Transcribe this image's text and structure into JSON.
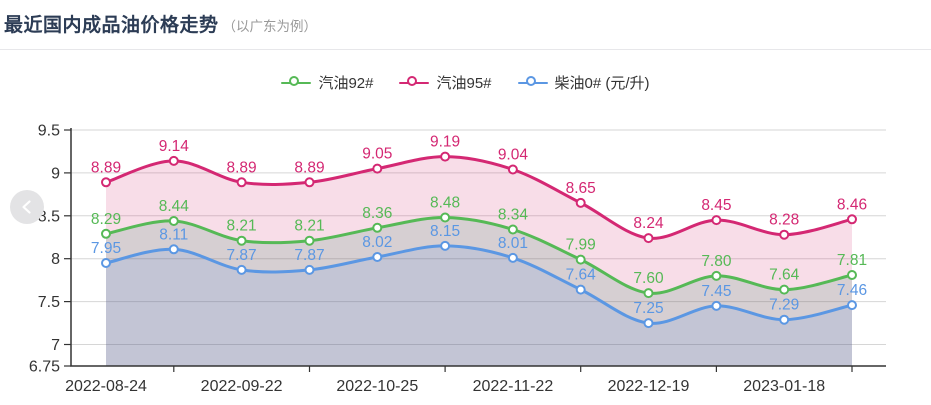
{
  "header": {
    "title": "最近国内成品油价格走势",
    "subtitle": "（以广东为例）"
  },
  "carousel": {
    "prev_icon": "chevron-left"
  },
  "chart_data": {
    "type": "line",
    "title": "最近国内成品油价格走势（以广东为例）",
    "unit": "元/升",
    "smooth": true,
    "grid": true,
    "legend_position": "top",
    "x_tick_labels": [
      "2022-08-24",
      "2022-09-22",
      "2022-10-25",
      "2022-11-22",
      "2022-12-19",
      "2023-01-18"
    ],
    "y_ticks": [
      6.75,
      7,
      7.5,
      8,
      8.5,
      9,
      9.5
    ],
    "ylim": [
      6.75,
      9.5
    ],
    "n_points": 12,
    "series": [
      {
        "name": "汽油92#",
        "color": "#56b956",
        "values": [
          8.29,
          8.44,
          8.21,
          8.21,
          8.36,
          8.48,
          8.34,
          7.99,
          7.6,
          7.8,
          7.64,
          7.81
        ]
      },
      {
        "name": "汽油95#",
        "color": "#d42873",
        "values": [
          8.89,
          9.14,
          8.89,
          8.89,
          9.05,
          9.19,
          9.04,
          8.65,
          8.24,
          8.45,
          8.28,
          8.46
        ]
      },
      {
        "name": "柴油0# (元/升)",
        "color": "#5b97e3",
        "values": [
          7.95,
          8.11,
          7.87,
          7.87,
          8.02,
          8.15,
          8.01,
          7.64,
          7.25,
          7.45,
          7.29,
          7.46
        ]
      }
    ],
    "band_fills": [
      "rgba(212,42,112,0.16)",
      "rgba(118,95,105,0.30)",
      "rgba(84,89,135,0.35)"
    ],
    "axis_color": "#333333",
    "gridline_color": "#d6d6d6"
  }
}
